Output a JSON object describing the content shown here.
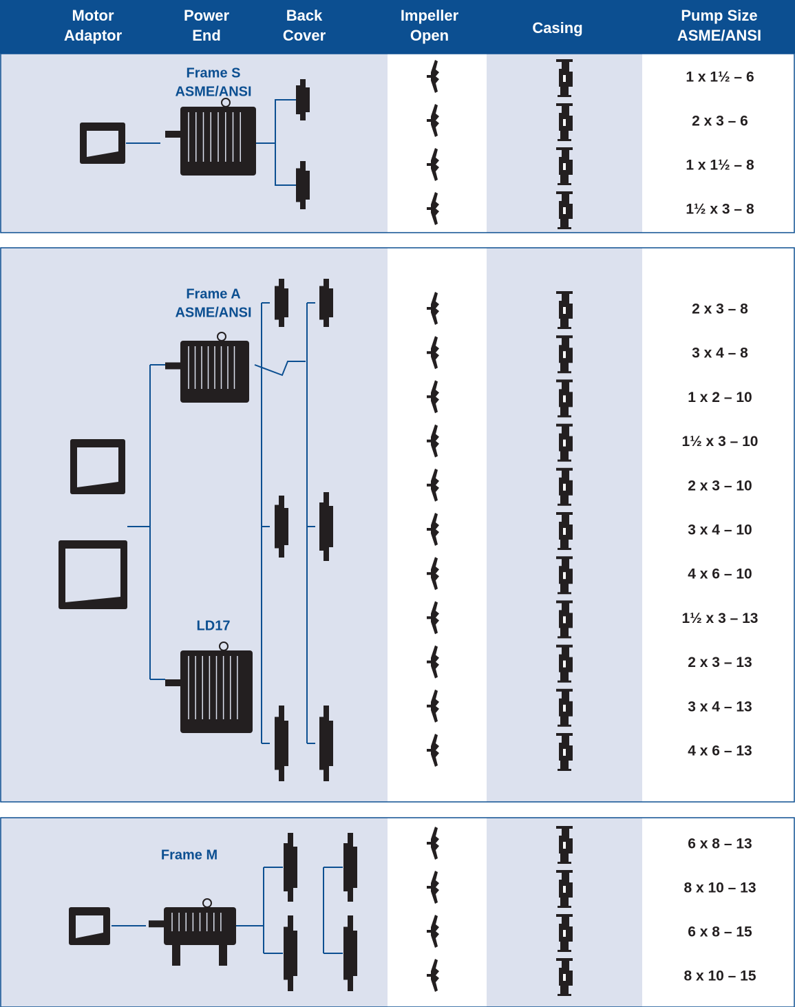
{
  "header": {
    "columns": [
      [
        "Motor",
        "Adaptor"
      ],
      [
        "Power",
        "End"
      ],
      [
        "Back",
        "Cover"
      ],
      [
        "Impeller",
        "Open"
      ],
      [
        "Casing"
      ],
      [
        "Pump Size",
        "ASME/ANSI"
      ]
    ]
  },
  "sections": [
    {
      "frames": [
        [
          "Frame S",
          "ASME/ANSI"
        ]
      ],
      "sizes": [
        "1 x 1½ – 6",
        "2 x 3 – 6",
        "1 x 1½ – 8",
        "1½ x 3 – 8"
      ]
    },
    {
      "frames": [
        [
          "Frame A",
          "ASME/ANSI"
        ],
        [
          "LD17"
        ]
      ],
      "sizes": [
        "2 x 3 – 8",
        "3 x 4 – 8",
        "1 x 2 – 10",
        "1½ x 3 – 10",
        "2 x 3 – 10",
        "3 x 4 – 10",
        "4 x 6 – 10",
        "1½ x 3 – 13",
        "2 x 3 – 13",
        "3 x 4 – 13",
        "4 x 6 – 13"
      ]
    },
    {
      "frames": [
        [
          "Frame M"
        ]
      ],
      "sizes": [
        "6 x 8 – 13",
        "8 x 10 – 13",
        "6 x 8 – 15",
        "8 x 10 – 15"
      ]
    }
  ]
}
